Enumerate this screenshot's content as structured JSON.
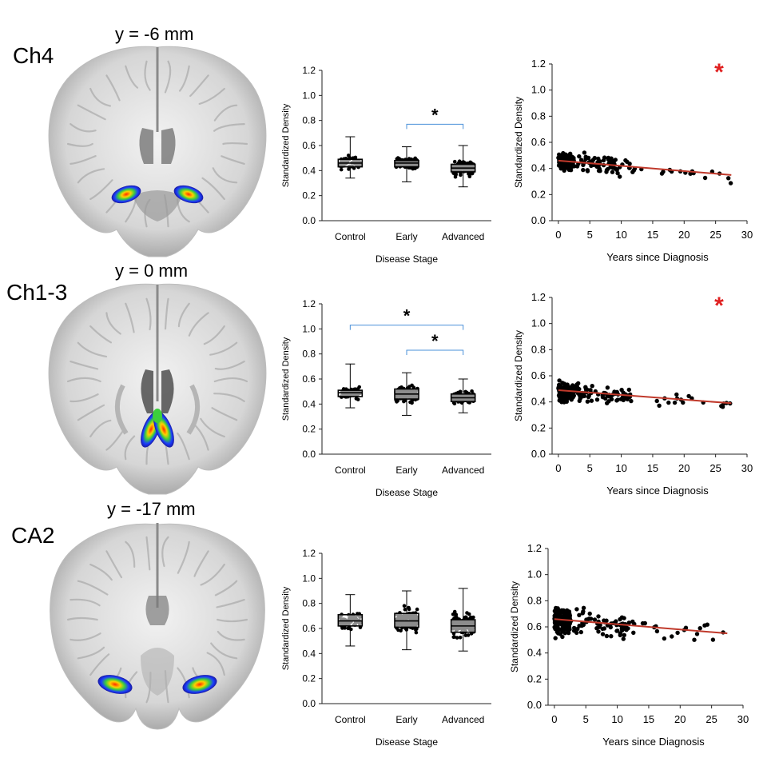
{
  "rows": [
    {
      "id": "ch4",
      "region": "Ch4",
      "coord": "y = -6 mm",
      "blob_type": "basal",
      "stage_plot": {
        "type": "box",
        "ylabel": "Standardized Density",
        "xlabel": "Disease Stage",
        "ylim": [
          0.0,
          1.2
        ],
        "yticks": [
          "0.0",
          "0.2",
          "0.4",
          "0.6",
          "0.8",
          "1.0",
          "1.2"
        ],
        "categories": [
          "Control",
          "Early",
          "Advanced"
        ],
        "boxes": [
          {
            "q1": 0.43,
            "median": 0.46,
            "q3": 0.49,
            "wlo": 0.34,
            "whi": 0.67
          },
          {
            "q1": 0.43,
            "median": 0.46,
            "q3": 0.48,
            "wlo": 0.31,
            "whi": 0.59
          },
          {
            "q1": 0.39,
            "median": 0.42,
            "q3": 0.45,
            "wlo": 0.27,
            "whi": 0.6
          }
        ],
        "significance": [
          {
            "from": 1,
            "to": 2,
            "y": 0.77,
            "label": "*"
          }
        ]
      },
      "years_plot": {
        "type": "scatter",
        "ylabel": "Standardized Density",
        "xlabel": "Years since Diagnosis",
        "ylim": [
          0.0,
          1.2
        ],
        "xlim": [
          -1,
          30
        ],
        "yticks": [
          "0.0",
          "0.2",
          "0.4",
          "0.6",
          "0.8",
          "1.0",
          "1.2"
        ],
        "xticks": [
          "0",
          "5",
          "10",
          "15",
          "20",
          "25",
          "30"
        ],
        "trend": {
          "x0": 0,
          "y0": 0.46,
          "x1": 27.5,
          "y1": 0.35
        },
        "center": 0.46,
        "spread": 0.055,
        "significant_marker": "*"
      }
    },
    {
      "id": "ch13",
      "region": "Ch1-3",
      "coord": "y = 0 mm",
      "blob_type": "septal",
      "stage_plot": {
        "type": "box",
        "ylabel": "Standardized Density",
        "xlabel": "Disease Stage",
        "ylim": [
          0.0,
          1.2
        ],
        "yticks": [
          "0.0",
          "0.2",
          "0.4",
          "0.6",
          "0.8",
          "1.0",
          "1.2"
        ],
        "categories": [
          "Control",
          "Early",
          "Advanced"
        ],
        "boxes": [
          {
            "q1": 0.46,
            "median": 0.49,
            "q3": 0.51,
            "wlo": 0.37,
            "whi": 0.72
          },
          {
            "q1": 0.44,
            "median": 0.48,
            "q3": 0.52,
            "wlo": 0.31,
            "whi": 0.65
          },
          {
            "q1": 0.42,
            "median": 0.45,
            "q3": 0.48,
            "wlo": 0.33,
            "whi": 0.6
          }
        ],
        "significance": [
          {
            "from": 0,
            "to": 2,
            "y": 1.03,
            "label": "*"
          },
          {
            "from": 1,
            "to": 2,
            "y": 0.83,
            "label": "*"
          }
        ]
      },
      "years_plot": {
        "type": "scatter",
        "ylabel": "Standardized Density",
        "xlabel": "Years since Diagnosis",
        "ylim": [
          0.0,
          1.2
        ],
        "xlim": [
          -1,
          30
        ],
        "yticks": [
          "0.0",
          "0.2",
          "0.4",
          "0.6",
          "0.8",
          "1.0",
          "1.2"
        ],
        "xticks": [
          "0",
          "5",
          "10",
          "15",
          "20",
          "25",
          "30"
        ],
        "trend": {
          "x0": 0,
          "y0": 0.49,
          "x1": 27.5,
          "y1": 0.39
        },
        "center": 0.48,
        "spread": 0.06,
        "significant_marker": "*"
      }
    },
    {
      "id": "ca2",
      "region": "CA2",
      "coord": "y = -17 mm",
      "blob_type": "hippo",
      "stage_plot": {
        "type": "box",
        "ylabel": "Standardized Density",
        "xlabel": "Disease Stage",
        "ylim": [
          0.0,
          1.2
        ],
        "yticks": [
          "0.0",
          "0.2",
          "0.4",
          "0.6",
          "0.8",
          "1.0",
          "1.2"
        ],
        "categories": [
          "Control",
          "Early",
          "Advanced"
        ],
        "boxes": [
          {
            "q1": 0.62,
            "median": 0.66,
            "q3": 0.71,
            "wlo": 0.46,
            "whi": 0.87
          },
          {
            "q1": 0.61,
            "median": 0.66,
            "q3": 0.72,
            "wlo": 0.43,
            "whi": 0.9
          },
          {
            "q1": 0.57,
            "median": 0.62,
            "q3": 0.67,
            "wlo": 0.42,
            "whi": 0.92
          }
        ],
        "significance": []
      },
      "years_plot": {
        "type": "scatter",
        "ylabel": "Standardized Density",
        "xlabel": "Years since Diagnosis",
        "ylim": [
          0.0,
          1.2
        ],
        "xlim": [
          -1,
          30
        ],
        "yticks": [
          "0.0",
          "0.2",
          "0.4",
          "0.6",
          "0.8",
          "1.0",
          "1.2"
        ],
        "xticks": [
          "0",
          "5",
          "10",
          "15",
          "20",
          "25",
          "30"
        ],
        "trend": {
          "x0": 0,
          "y0": 0.66,
          "x1": 27.5,
          "y1": 0.55
        },
        "center": 0.65,
        "spread": 0.09,
        "significant_marker": ""
      }
    }
  ],
  "colors": {
    "significance_bracket": "#4a90d9",
    "trend_line": "#c0392b",
    "significant_marker": "#e02020",
    "axis": "#222222",
    "points": "#000000"
  }
}
